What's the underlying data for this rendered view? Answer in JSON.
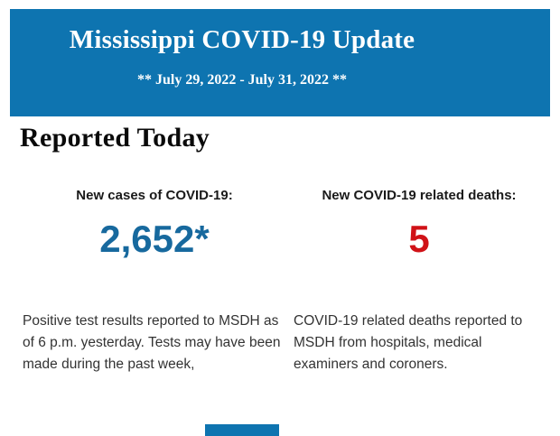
{
  "header": {
    "title": "Mississippi COVID-19 Update",
    "date_range": "** July 29, 2022 - July 31, 2022 **",
    "background_color": "#0E74B0",
    "text_color": "#FFFFFF"
  },
  "section": {
    "title": "Reported Today"
  },
  "stats": [
    {
      "label": "New cases of COVID-19:",
      "value": "2,652*",
      "value_color": "#17699E",
      "description": "Positive test results reported to MSDH as of 6 p.m. yesterday. Tests may have been made during the past week,"
    },
    {
      "label": "New COVID-19 related deaths:",
      "value": "5",
      "value_color": "#D01217",
      "description": "COVID-19 related deaths reported to MSDH from hospitals, medical examiners and coroners."
    }
  ],
  "footer": {
    "partial_blue_element_color": "#0E74B0"
  }
}
